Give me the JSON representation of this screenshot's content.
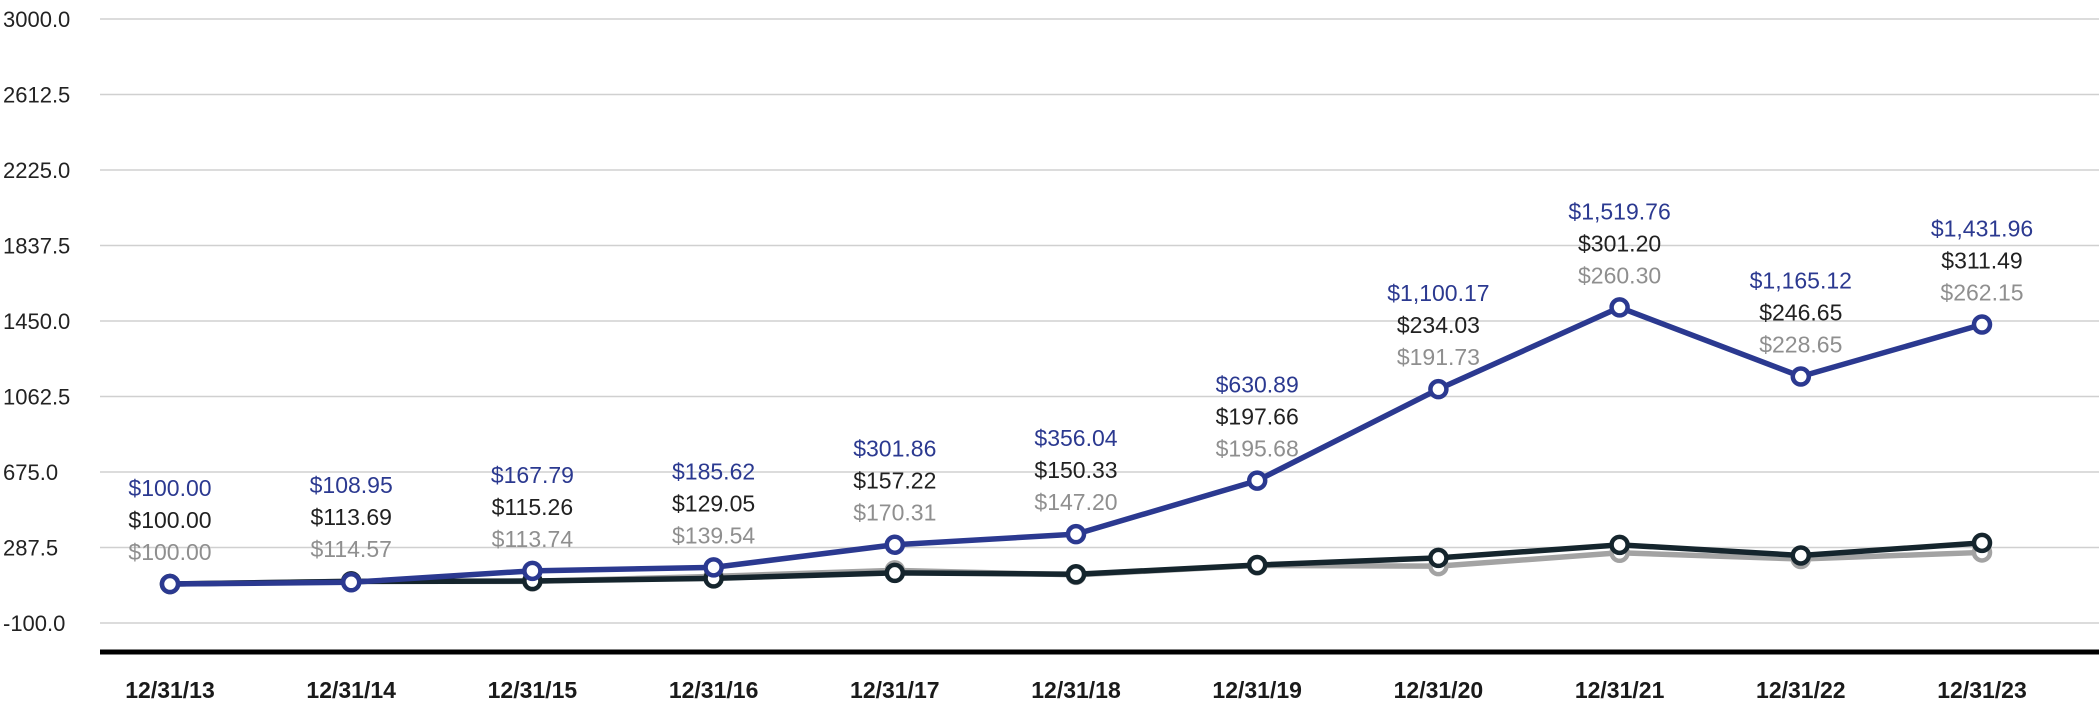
{
  "chart_data": {
    "type": "line",
    "title": "",
    "xlabel": "",
    "ylabel": "",
    "grid": true,
    "legend": "none",
    "ylim": [
      -100.0,
      3000.0
    ],
    "y_ticks": [
      3000.0,
      2612.5,
      2225.0,
      1837.5,
      1450.0,
      1062.5,
      675.0,
      287.5,
      -100.0
    ],
    "y_tick_labels": [
      "3000.0",
      "2612.5",
      "2225.0",
      "1837.5",
      "1450.0",
      "1062.5",
      "675.0",
      "287.5",
      "-100.0"
    ],
    "categories": [
      "12/31/13",
      "12/31/14",
      "12/31/15",
      "12/31/16",
      "12/31/17",
      "12/31/18",
      "12/31/19",
      "12/31/20",
      "12/31/21",
      "12/31/22",
      "12/31/23"
    ],
    "series": [
      {
        "name": "series-blue",
        "color": "#2b3990",
        "label_color": "#2b3990",
        "values": [
          100.0,
          108.95,
          167.79,
          185.62,
          301.86,
          356.04,
          630.89,
          1100.17,
          1519.76,
          1165.12,
          1431.96
        ],
        "labels": [
          "$100.00",
          "$108.95",
          "$167.79",
          "$185.62",
          "$301.86",
          "$356.04",
          "$630.89",
          "$1,100.17",
          "$1,519.76",
          "$1,165.12",
          "$1,431.96"
        ]
      },
      {
        "name": "series-black",
        "color": "#15252d",
        "label_color": "#212121",
        "values": [
          100.0,
          113.69,
          115.26,
          129.05,
          157.22,
          150.33,
          197.66,
          234.03,
          301.2,
          246.65,
          311.49
        ],
        "labels": [
          "$100.00",
          "$113.69",
          "$115.26",
          "$129.05",
          "$157.22",
          "$150.33",
          "$197.66",
          "$234.03",
          "$301.20",
          "$246.65",
          "$311.49"
        ]
      },
      {
        "name": "series-gray",
        "color": "#a3a3a3",
        "label_color": "#8f8f8f",
        "values": [
          100.0,
          114.57,
          113.74,
          139.54,
          170.31,
          147.2,
          195.68,
          191.73,
          260.3,
          228.65,
          262.15
        ],
        "labels": [
          "$100.00",
          "$114.57",
          "$113.74",
          "$139.54",
          "$170.31",
          "$147.20",
          "$195.68",
          "$191.73",
          "$260.30",
          "$228.65",
          "$262.15"
        ]
      }
    ],
    "style": {
      "grid_color": "#d0d0d0",
      "axis_color": "#000000",
      "x_tick_color": "#1a1a1a",
      "y_tick_color": "#222222",
      "marker_fill": "#ffffff"
    }
  }
}
